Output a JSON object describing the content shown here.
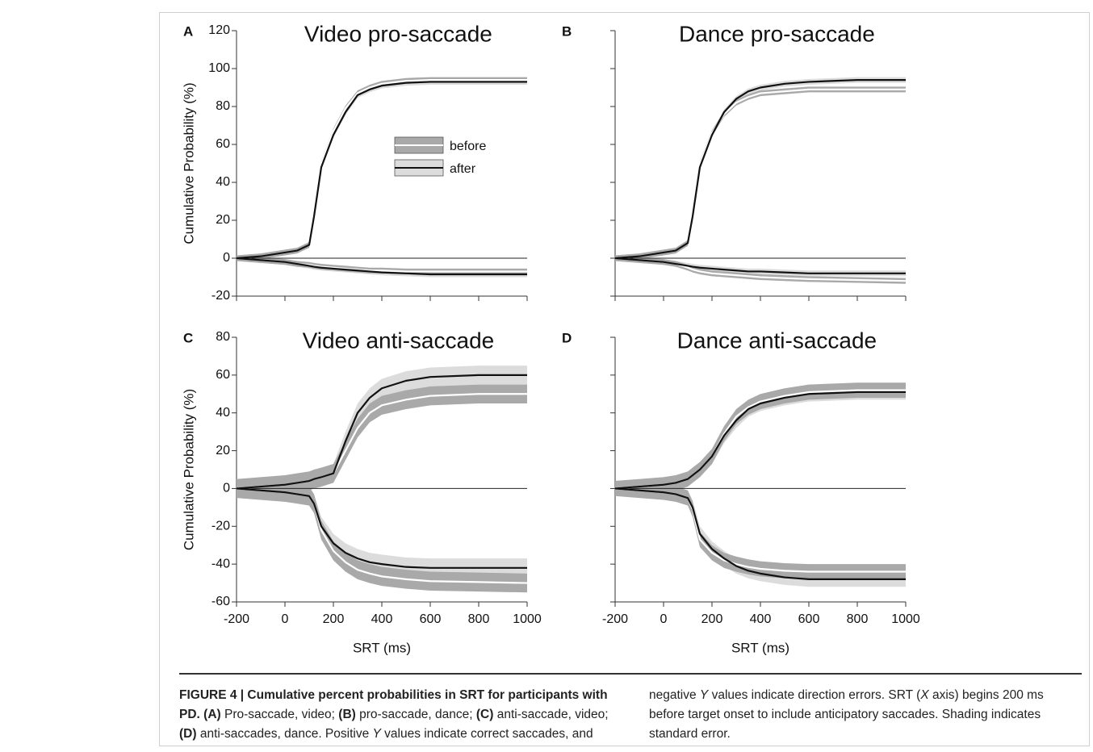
{
  "chart_data": [
    {
      "type": "line",
      "letter": "A",
      "title": "Video pro-saccade",
      "ylabel": "Cumulative Probability (%)",
      "x": [
        -200,
        -100,
        0,
        50,
        100,
        120,
        150,
        200,
        250,
        300,
        350,
        400,
        500,
        600,
        800,
        1000
      ],
      "xlim": [
        -200,
        1000
      ],
      "xticks": [
        -200,
        0,
        200,
        400,
        600,
        800,
        1000
      ],
      "xtick_labels": false,
      "ylim": [
        -20,
        120
      ],
      "yticks": [
        -20,
        0,
        20,
        40,
        60,
        80,
        100,
        120
      ],
      "ytick_labels": true,
      "legend": "center",
      "series": [
        {
          "name": "before",
          "color": "#ffffff",
          "band_color": "#a9a9a9",
          "error": 1.5,
          "values": [
            0,
            1,
            3,
            4,
            7,
            24,
            50,
            67,
            79,
            87,
            90,
            92,
            93.5,
            94,
            94,
            94
          ],
          "neg_values": [
            0,
            -1,
            -2,
            -3,
            -3.5,
            -4,
            -4.5,
            -5,
            -5.5,
            -6,
            -6.5,
            -6.5,
            -7,
            -7,
            -7,
            -7
          ]
        },
        {
          "name": "after",
          "color": "#111111",
          "band_color": "#dcdcdc",
          "error": 1.5,
          "values": [
            0,
            1,
            3,
            4,
            7,
            22,
            48,
            65,
            77,
            86,
            89,
            91,
            92.5,
            93,
            93,
            93
          ],
          "neg_values": [
            0,
            -1,
            -2,
            -3,
            -4,
            -4.5,
            -5,
            -5.5,
            -6,
            -6.5,
            -7,
            -7.5,
            -8,
            -8.5,
            -8.5,
            -8.5
          ]
        }
      ]
    },
    {
      "type": "line",
      "letter": "B",
      "title": "Dance pro-saccade",
      "x": [
        -200,
        -100,
        0,
        50,
        100,
        120,
        150,
        200,
        250,
        300,
        350,
        400,
        500,
        600,
        800,
        1000
      ],
      "xlim": [
        -200,
        1000
      ],
      "xticks": [
        -200,
        0,
        200,
        400,
        600,
        800,
        1000
      ],
      "xtick_labels": false,
      "ylim": [
        -20,
        120
      ],
      "yticks": [
        -20,
        0,
        20,
        40,
        60,
        80,
        100,
        120
      ],
      "ytick_labels": false,
      "series": [
        {
          "color": "#ffffff",
          "band_color": "#a9a9a9",
          "error": 1.5,
          "values": [
            0,
            1,
            3,
            4,
            8,
            24,
            50,
            66,
            76,
            82,
            85,
            87,
            88,
            89,
            89,
            89
          ],
          "neg_values": [
            0,
            -1,
            -2,
            -3,
            -5,
            -6,
            -7,
            -8,
            -8.5,
            -9,
            -9.5,
            -10,
            -10.5,
            -11,
            -11.5,
            -12
          ]
        },
        {
          "color": "#111111",
          "band_color": "#dcdcdc",
          "error": 1.5,
          "values": [
            0,
            1,
            3,
            4,
            8,
            22,
            48,
            65,
            77,
            84,
            88,
            90,
            92,
            93,
            94,
            94
          ],
          "neg_values": [
            0,
            -1,
            -2,
            -3,
            -4,
            -4.5,
            -5,
            -5.5,
            -6,
            -6.5,
            -7,
            -7,
            -7.5,
            -8,
            -8,
            -8
          ]
        }
      ]
    },
    {
      "type": "line",
      "letter": "C",
      "title": "Video anti-saccade",
      "ylabel": "Cumulative Probability (%)",
      "xlabel": "SRT (ms)",
      "x": [
        -200,
        -100,
        0,
        50,
        100,
        120,
        150,
        200,
        250,
        300,
        350,
        400,
        500,
        600,
        800,
        1000
      ],
      "xlim": [
        -200,
        1000
      ],
      "xticks": [
        -200,
        0,
        200,
        400,
        600,
        800,
        1000
      ],
      "xtick_labels": true,
      "ylim": [
        -60,
        80
      ],
      "yticks": [
        -60,
        -40,
        -20,
        0,
        20,
        40,
        60,
        80
      ],
      "ytick_labels": true,
      "series": [
        {
          "color": "#ffffff",
          "band_color": "#a9a9a9",
          "error": 5,
          "values": [
            0,
            1,
            2,
            3,
            4,
            5,
            6,
            8,
            20,
            32,
            40,
            44,
            47,
            49,
            50,
            50
          ],
          "neg_values": [
            0,
            -1,
            -2,
            -3,
            -4,
            -8,
            -22,
            -33,
            -39,
            -43,
            -45,
            -46.5,
            -48,
            -49,
            -49.5,
            -50
          ]
        },
        {
          "color": "#111111",
          "band_color": "#dcdcdc",
          "error": 5,
          "values": [
            0,
            1,
            2,
            3,
            4,
            5,
            6,
            8,
            25,
            40,
            48,
            53,
            57,
            59,
            60,
            60
          ],
          "neg_values": [
            0,
            -1,
            -2,
            -3,
            -4,
            -8,
            -20,
            -29,
            -34,
            -37,
            -39,
            -40,
            -41.5,
            -42,
            -42,
            -42
          ]
        }
      ]
    },
    {
      "type": "line",
      "letter": "D",
      "title": "Dance anti-saccade",
      "xlabel": "SRT (ms)",
      "x": [
        -200,
        -100,
        0,
        50,
        100,
        120,
        150,
        200,
        250,
        300,
        350,
        400,
        500,
        600,
        800,
        1000
      ],
      "xlim": [
        -200,
        1000
      ],
      "xticks": [
        -200,
        0,
        200,
        400,
        600,
        800,
        1000
      ],
      "xtick_labels": true,
      "ylim": [
        -60,
        80
      ],
      "yticks": [
        -60,
        -40,
        -20,
        0,
        20,
        40,
        60,
        80
      ],
      "ytick_labels": false,
      "series": [
        {
          "color": "#ffffff",
          "band_color": "#a9a9a9",
          "error": 4,
          "values": [
            0,
            1,
            2,
            3,
            5,
            7,
            10,
            17,
            29,
            38,
            43,
            46,
            49,
            51,
            52,
            52
          ],
          "neg_values": [
            0,
            -1,
            -2,
            -3,
            -5,
            -11,
            -27,
            -34,
            -38,
            -40,
            -41.5,
            -42.5,
            -43.5,
            -44,
            -44,
            -44
          ]
        },
        {
          "color": "#111111",
          "band_color": "#dcdcdc",
          "error": 4,
          "values": [
            0,
            1,
            2,
            3,
            5,
            7,
            10,
            17,
            28,
            36,
            42,
            45,
            48,
            50,
            51,
            51
          ],
          "neg_values": [
            0,
            -1,
            -2,
            -3,
            -5,
            -10,
            -24,
            -32,
            -37,
            -41,
            -43.5,
            -45,
            -47,
            -48,
            -48,
            -48
          ]
        }
      ]
    }
  ],
  "caption": {
    "segments": [
      {
        "text": "FIGURE 4 | Cumulative percent probabilities in SRT for participants with PD. ",
        "bold": true
      },
      {
        "text": "(A)",
        "bold": true
      },
      {
        "text": " Pro-saccade, video; "
      },
      {
        "text": "(B)",
        "bold": true
      },
      {
        "text": " pro-saccade, dance; "
      },
      {
        "text": "(C)",
        "bold": true
      },
      {
        "text": " anti-saccade, video; "
      },
      {
        "text": "(D)",
        "bold": true
      },
      {
        "text": " anti-saccades, dance. Positive "
      },
      {
        "text": "Y",
        "italic": true
      },
      {
        "text": " values indicate correct saccades, and negative "
      },
      {
        "text": "Y",
        "italic": true
      },
      {
        "text": " values indicate direction errors. SRT ("
      },
      {
        "text": "X",
        "italic": true
      },
      {
        "text": " axis) begins 200 ms before target onset to include anticipatory saccades. Shading indicates standard error."
      }
    ]
  }
}
